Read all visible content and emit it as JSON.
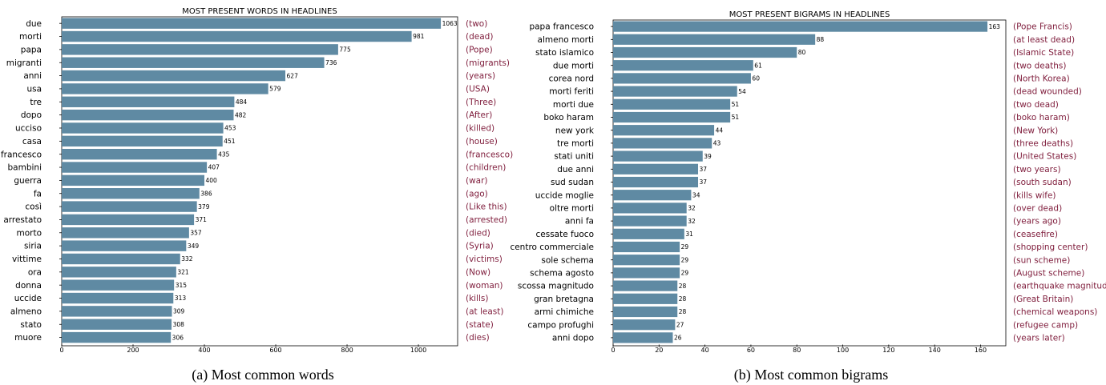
{
  "chart_data": [
    {
      "type": "bar",
      "orientation": "horizontal",
      "title": "MOST PRESENT WORDS IN HEADLINES",
      "caption": "(a) Most common words",
      "bar_color": "#5f8aa3",
      "translation_color": "#7f1d3c",
      "xlim": [
        0,
        1110
      ],
      "xticks": [
        "0",
        "200",
        "400",
        "600",
        "800",
        "1000"
      ],
      "categories": [
        "due",
        "morti",
        "papa",
        "migranti",
        "anni",
        "usa",
        "tre",
        "dopo",
        "ucciso",
        "casa",
        "francesco",
        "bambini",
        "guerra",
        "fa",
        "così",
        "arrestato",
        "morto",
        "siria",
        "vittime",
        "ora",
        "donna",
        "uccide",
        "almeno",
        "stato",
        "muore"
      ],
      "values": [
        1063,
        981,
        775,
        736,
        627,
        579,
        484,
        482,
        453,
        451,
        435,
        407,
        400,
        386,
        379,
        371,
        357,
        349,
        332,
        321,
        315,
        313,
        309,
        308,
        306
      ],
      "translations": [
        "(two)",
        "(dead)",
        "(Pope)",
        "(migrants)",
        "(years)",
        "(USA)",
        "(Three)",
        "(After)",
        "(killed)",
        "(house)",
        "(francesco)",
        "(children)",
        "(war)",
        "(ago)",
        "(Like this)",
        "(arrested)",
        "(died)",
        "(Syria)",
        "(victims)",
        "(Now)",
        "(woman)",
        "(kills)",
        "(at least)",
        "(state)",
        "(dies)"
      ]
    },
    {
      "type": "bar",
      "orientation": "horizontal",
      "title": "MOST PRESENT BIGRAMS IN HEADLINES",
      "caption": "(b) Most common bigrams",
      "bar_color": "#5f8aa3",
      "translation_color": "#7f1d3c",
      "xlim": [
        0,
        171
      ],
      "xticks": [
        "0",
        "20",
        "40",
        "60",
        "80",
        "100",
        "120",
        "140",
        "160"
      ],
      "categories": [
        "papa francesco",
        "almeno morti",
        "stato islamico",
        "due morti",
        "corea nord",
        "morti feriti",
        "morti due",
        "boko haram",
        "new york",
        "tre morti",
        "stati uniti",
        "due anni",
        "sud sudan",
        "uccide moglie",
        "oltre morti",
        "anni fa",
        "cessate fuoco",
        "centro commerciale",
        "sole schema",
        "schema agosto",
        "scossa magnitudo",
        "gran bretagna",
        "armi chimiche",
        "campo profughi",
        "anni dopo"
      ],
      "values": [
        163,
        88,
        80,
        61,
        60,
        54,
        51,
        51,
        44,
        43,
        39,
        37,
        37,
        34,
        32,
        32,
        31,
        29,
        29,
        29,
        28,
        28,
        28,
        27,
        26
      ],
      "translations": [
        "(Pope Francis)",
        "(at least dead)",
        "(Islamic State)",
        "(two deaths)",
        "(North Korea)",
        "(dead wounded)",
        "(two dead)",
        "(boko haram)",
        "(New York)",
        "(three deaths)",
        "(United States)",
        "(two years)",
        "(south sudan)",
        "(kills wife)",
        "(over dead)",
        "(years ago)",
        "(ceasefire)",
        "(shopping center)",
        "(sun scheme)",
        "(August scheme)",
        "(earthquake magnitude)",
        "(Great Britain)",
        "(chemical weapons)",
        "(refugee camp)",
        "(years later)"
      ]
    }
  ]
}
